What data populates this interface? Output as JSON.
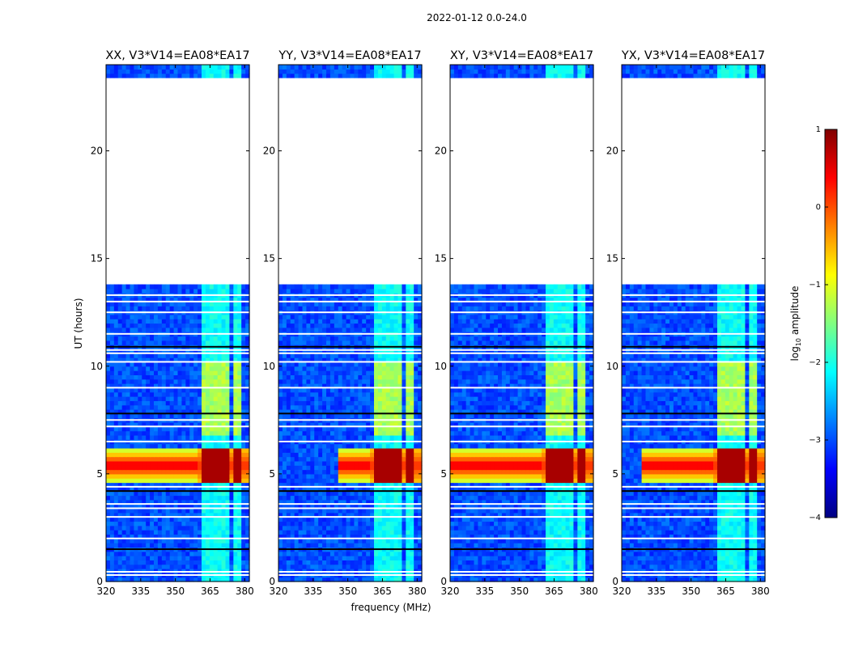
{
  "chart_data": {
    "type": "heatmap",
    "suptitle": "2022-01-12 0.0-24.0",
    "xlabel": "frequency (MHz)",
    "ylabel": "UT (hours)",
    "xlim": [
      320,
      382
    ],
    "ylim": [
      0,
      24
    ],
    "xticks": [
      320,
      335,
      350,
      365,
      380
    ],
    "yticks": [
      0,
      5,
      10,
      15,
      20
    ],
    "panels": [
      {
        "title": "XX, V3*V14=EA08*EA17",
        "pol": "XX",
        "flare_start_freq": 320
      },
      {
        "title": "YY, V3*V14=EA08*EA17",
        "pol": "YY",
        "flare_start_freq": 345
      },
      {
        "title": "XY, V3*V14=EA08*EA17",
        "pol": "XY",
        "flare_start_freq": 320
      },
      {
        "title": "YX, V3*V14=EA08*EA17",
        "pol": "YX",
        "flare_start_freq": 328
      }
    ],
    "data_gap_hours": [
      13.8,
      23.4
    ],
    "background_log_amplitude": -3.0,
    "rfi_bands_mhz": [
      [
        360.5,
        364.5
      ],
      [
        365.5,
        369.5
      ],
      [
        370.5,
        374.0
      ],
      [
        375.0,
        378.5
      ]
    ],
    "rfi_log_amplitude_day": -1.3,
    "rfi_log_amplitude_night": -2.1,
    "flare": {
      "start_hour": 4.6,
      "end_hour": 6.1,
      "peak_hour": 5.4,
      "peak_log_amplitude": 0.5
    },
    "flagged_rows_hours": [
      0.3,
      0.45,
      1.5,
      2.0,
      3.0,
      3.4,
      3.6,
      4.2,
      4.4,
      6.5,
      7.2,
      7.5,
      7.8,
      9.0,
      10.2,
      10.6,
      10.75,
      10.9,
      11.5,
      12.5,
      13.0,
      13.3
    ],
    "colorbar": {
      "label": "log10 amplitude",
      "label_main": "log",
      "label_sub": "10",
      "label_rest": " amplitude",
      "min": -4,
      "max": 1,
      "ticks": [
        "1",
        "0",
        "−1",
        "−2",
        "−3",
        "−4"
      ],
      "tick_values": [
        1,
        0,
        -1,
        -2,
        -3,
        -4
      ],
      "colors": [
        "#000080",
        "#0000ff",
        "#0080ff",
        "#00ffff",
        "#80ff80",
        "#ffff00",
        "#ff8000",
        "#ff0000",
        "#800000"
      ]
    }
  }
}
